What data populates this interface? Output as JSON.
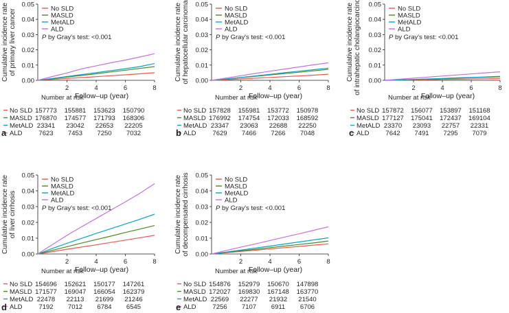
{
  "chart_data": [
    {
      "type": "line",
      "panel_letter": "a",
      "ylabel_lines": [
        "Cumulative incidence rate",
        "of primary liver cancer"
      ],
      "xlabel": "Follow–up (year)",
      "xlim": [
        0,
        8
      ],
      "ylim": [
        0,
        0.05
      ],
      "xticks": [
        "2",
        "4",
        "6",
        "8"
      ],
      "yticks": [
        "0.00",
        "0.01",
        "0.02",
        "0.03",
        "0.04",
        "0.05"
      ],
      "annotation_p": "P",
      "annotation_rest": " by Gray's test: <0.001",
      "risk_title": "Number at risk",
      "series": [
        {
          "name": "No SLD",
          "color": "#f0564e",
          "x": [
            0,
            1,
            2,
            3,
            4,
            5,
            6,
            7,
            8
          ],
          "y": [
            0,
            0.0006,
            0.0012,
            0.0018,
            0.0024,
            0.003,
            0.0036,
            0.0043,
            0.005
          ],
          "at_risk": [
            "157773",
            "155881",
            "153623",
            "150790"
          ]
        },
        {
          "name": "MASLD",
          "color": "#4b8a1d",
          "x": [
            0,
            1,
            2,
            3,
            4,
            5,
            6,
            7,
            8
          ],
          "y": [
            0,
            0.001,
            0.0021,
            0.0032,
            0.0043,
            0.0055,
            0.0066,
            0.0078,
            0.009
          ],
          "at_risk": [
            "176870",
            "174577",
            "171793",
            "168306"
          ]
        },
        {
          "name": "MetALD",
          "color": "#00a6c8",
          "x": [
            0,
            1,
            2,
            3,
            4,
            5,
            6,
            7,
            8
          ],
          "y": [
            0,
            0.0012,
            0.0025,
            0.0038,
            0.005,
            0.0063,
            0.0076,
            0.009,
            0.011
          ],
          "at_risk": [
            "23341",
            "23042",
            "22653",
            "22205"
          ]
        },
        {
          "name": "ALD",
          "color": "#c96ee0",
          "x": [
            0,
            1,
            2,
            3,
            4,
            5,
            6,
            7,
            8
          ],
          "y": [
            0,
            0.0025,
            0.0048,
            0.0075,
            0.0095,
            0.0115,
            0.0133,
            0.0153,
            0.0175
          ],
          "at_risk": [
            "7623",
            "7453",
            "7250",
            "7032"
          ]
        }
      ]
    },
    {
      "type": "line",
      "panel_letter": "b",
      "ylabel_lines": [
        "Cumulative incidence rate",
        "of hepatocellular carcinoma"
      ],
      "xlabel": "Follow–up (year)",
      "xlim": [
        0,
        8
      ],
      "ylim": [
        0,
        0.05
      ],
      "xticks": [
        "2",
        "4",
        "6",
        "8"
      ],
      "yticks": [
        "0.00",
        "0.01",
        "0.02",
        "0.03",
        "0.04",
        "0.05"
      ],
      "annotation_p": "P",
      "annotation_rest": " by Gray's test: <0.001",
      "risk_title": "Number at risk",
      "series": [
        {
          "name": "No SLD",
          "color": "#f0564e",
          "x": [
            0,
            1,
            2,
            3,
            4,
            5,
            6,
            7,
            8
          ],
          "y": [
            0,
            0.0004,
            0.0009,
            0.0014,
            0.0019,
            0.0024,
            0.0029,
            0.0034,
            0.004
          ],
          "at_risk": [
            "157828",
            "155981",
            "153772",
            "150978"
          ]
        },
        {
          "name": "MASLD",
          "color": "#4b8a1d",
          "x": [
            0,
            1,
            2,
            3,
            4,
            5,
            6,
            7,
            8
          ],
          "y": [
            0,
            0.0008,
            0.0017,
            0.0026,
            0.0035,
            0.0044,
            0.0053,
            0.0062,
            0.0072
          ],
          "at_risk": [
            "176992",
            "174754",
            "172033",
            "168592"
          ]
        },
        {
          "name": "MetALD",
          "color": "#00a6c8",
          "x": [
            0,
            1,
            2,
            3,
            4,
            5,
            6,
            7,
            8
          ],
          "y": [
            0,
            0.0009,
            0.0019,
            0.0029,
            0.0039,
            0.005,
            0.006,
            0.007,
            0.008
          ],
          "at_risk": [
            "23347",
            "23063",
            "22688",
            "22250"
          ]
        },
        {
          "name": "ALD",
          "color": "#c96ee0",
          "x": [
            0,
            1,
            2,
            3,
            4,
            5,
            6,
            7,
            8
          ],
          "y": [
            0,
            0.0015,
            0.003,
            0.0045,
            0.006,
            0.0074,
            0.0088,
            0.0102,
            0.0115
          ],
          "at_risk": [
            "7629",
            "7466",
            "7266",
            "7048"
          ]
        }
      ]
    },
    {
      "type": "line",
      "panel_letter": "c",
      "ylabel_lines": [
        "Cumulative incidence rate",
        "of intrahepatic cholangiocarcinoma"
      ],
      "xlabel": "Follow–up (year)",
      "xlim": [
        0,
        8
      ],
      "ylim": [
        0,
        0.05
      ],
      "xticks": [
        "2",
        "4",
        "6",
        "8"
      ],
      "yticks": [
        "0.00",
        "0.01",
        "0.02",
        "0.03",
        "0.04",
        "0.05"
      ],
      "annotation_p": "P",
      "annotation_rest": " by Gray's test: <0.001",
      "risk_title": "Number at risk",
      "series": [
        {
          "name": "No SLD",
          "color": "#f0564e",
          "x": [
            0,
            1,
            2,
            3,
            4,
            5,
            6,
            7,
            8
          ],
          "y": [
            0,
            0.0001,
            0.0003,
            0.0004,
            0.0006,
            0.0007,
            0.0009,
            0.001,
            0.0012
          ],
          "at_risk": [
            "157872",
            "156077",
            "153897",
            "151168"
          ]
        },
        {
          "name": "MASLD",
          "color": "#4b8a1d",
          "x": [
            0,
            1,
            2,
            3,
            4,
            5,
            6,
            7,
            8
          ],
          "y": [
            0,
            0.0002,
            0.0005,
            0.0008,
            0.0011,
            0.0014,
            0.0017,
            0.002,
            0.0023
          ],
          "at_risk": [
            "177127",
            "175041",
            "172437",
            "169104"
          ]
        },
        {
          "name": "MetALD",
          "color": "#00a6c8",
          "x": [
            0,
            1,
            2,
            3,
            4,
            5,
            6,
            7,
            8
          ],
          "y": [
            0,
            0.0003,
            0.0006,
            0.0009,
            0.0012,
            0.0016,
            0.0019,
            0.0022,
            0.0026
          ],
          "at_risk": [
            "23370",
            "23093",
            "22757",
            "22331"
          ]
        },
        {
          "name": "ALD",
          "color": "#c96ee0",
          "x": [
            0,
            1,
            2,
            3,
            4,
            5,
            6,
            7,
            8
          ],
          "y": [
            0,
            0.0007,
            0.0014,
            0.0021,
            0.0028,
            0.0035,
            0.0042,
            0.0049,
            0.0056
          ],
          "at_risk": [
            "7642",
            "7491",
            "7295",
            "7079"
          ]
        }
      ]
    },
    {
      "type": "line",
      "panel_letter": "d",
      "ylabel_lines": [
        "Cumulative incidence rate",
        "of liver cirrhosis"
      ],
      "xlabel": "Follow–up (year)",
      "xlim": [
        0,
        8
      ],
      "ylim": [
        0,
        0.05
      ],
      "xticks": [
        "2",
        "4",
        "6",
        "8"
      ],
      "yticks": [
        "0.00",
        "0.01",
        "0.02",
        "0.03",
        "0.04",
        "0.05"
      ],
      "annotation_p": "P",
      "annotation_rest": " by Gray's test: <0.001",
      "risk_title": "Number at risk",
      "series": [
        {
          "name": "No SLD",
          "color": "#f0564e",
          "x": [
            0,
            1,
            2,
            3,
            4,
            5,
            6,
            7,
            8
          ],
          "y": [
            0,
            0.0015,
            0.003,
            0.0044,
            0.0058,
            0.0073,
            0.0088,
            0.0103,
            0.0118
          ],
          "at_risk": [
            "154696",
            "152621",
            "150177",
            "147261"
          ]
        },
        {
          "name": "MASLD",
          "color": "#4b8a1d",
          "x": [
            0,
            1,
            2,
            3,
            4,
            5,
            6,
            7,
            8
          ],
          "y": [
            0,
            0.0023,
            0.0046,
            0.0069,
            0.0091,
            0.0113,
            0.0136,
            0.0158,
            0.018
          ],
          "at_risk": [
            "171577",
            "169047",
            "166054",
            "162379"
          ]
        },
        {
          "name": "MetALD",
          "color": "#00a6c8",
          "x": [
            0,
            1,
            2,
            3,
            4,
            5,
            6,
            7,
            8
          ],
          "y": [
            0,
            0.0035,
            0.0068,
            0.0099,
            0.013,
            0.016,
            0.019,
            0.022,
            0.0252
          ],
          "at_risk": [
            "22478",
            "22113",
            "21699",
            "21246"
          ]
        },
        {
          "name": "ALD",
          "color": "#c96ee0",
          "x": [
            0,
            1,
            2,
            3,
            4,
            5,
            6,
            7,
            8
          ],
          "y": [
            0,
            0.006,
            0.0118,
            0.0172,
            0.0225,
            0.0278,
            0.033,
            0.0385,
            0.0445
          ],
          "at_risk": [
            "7192",
            "7012",
            "6784",
            "6545"
          ]
        }
      ]
    },
    {
      "type": "line",
      "panel_letter": "e",
      "ylabel_lines": [
        "Cumulative incidence rate",
        "of decompensated cirrhosis"
      ],
      "xlabel": "Follow–up (year)",
      "xlim": [
        0,
        8
      ],
      "ylim": [
        0,
        0.05
      ],
      "xticks": [
        "2",
        "4",
        "6",
        "8"
      ],
      "yticks": [
        "0.00",
        "0.01",
        "0.02",
        "0.03",
        "0.04",
        "0.05"
      ],
      "annotation_p": "P",
      "annotation_rest": " by Gray's test: <0.001",
      "risk_title": "Number at risk",
      "series": [
        {
          "name": "No SLD",
          "color": "#f0564e",
          "x": [
            0,
            1,
            2,
            3,
            4,
            5,
            6,
            7,
            8
          ],
          "y": [
            0,
            0.0008,
            0.0016,
            0.0024,
            0.0032,
            0.004,
            0.0048,
            0.0056,
            0.0064
          ],
          "at_risk": [
            "154876",
            "152979",
            "150670",
            "147898"
          ]
        },
        {
          "name": "MASLD",
          "color": "#4b8a1d",
          "x": [
            0,
            1,
            2,
            3,
            4,
            5,
            6,
            7,
            8
          ],
          "y": [
            0,
            0.001,
            0.002,
            0.003,
            0.004,
            0.005,
            0.006,
            0.007,
            0.0082
          ],
          "at_risk": [
            "172027",
            "169830",
            "167148",
            "163770"
          ]
        },
        {
          "name": "MetALD",
          "color": "#00a6c8",
          "x": [
            0,
            1,
            2,
            3,
            4,
            5,
            6,
            7,
            8
          ],
          "y": [
            0,
            0.0012,
            0.0025,
            0.0038,
            0.005,
            0.0063,
            0.0076,
            0.0089,
            0.0102
          ],
          "at_risk": [
            "22569",
            "22277",
            "21932",
            "21540"
          ]
        },
        {
          "name": "ALD",
          "color": "#c96ee0",
          "x": [
            0,
            1,
            2,
            3,
            4,
            5,
            6,
            7,
            8
          ],
          "y": [
            0,
            0.0022,
            0.0043,
            0.0064,
            0.0085,
            0.0107,
            0.0128,
            0.015,
            0.0172
          ],
          "at_risk": [
            "7256",
            "7107",
            "6911",
            "6706"
          ]
        }
      ]
    }
  ]
}
